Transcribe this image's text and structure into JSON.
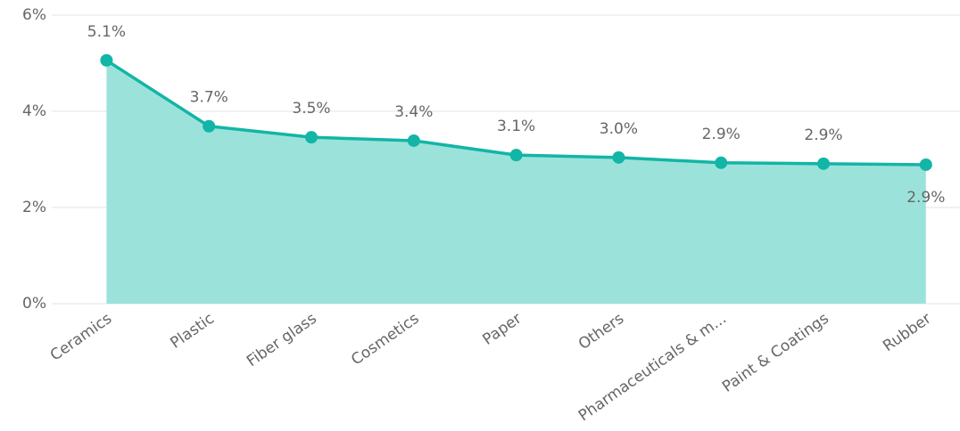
{
  "chart_data": {
    "type": "area",
    "categories": [
      "Ceramics",
      "Plastic",
      "Fiber glass",
      "Cosmetics",
      "Paper",
      "Others",
      "Pharmaceuticals & m...",
      "Paint & Coatings",
      "Rubber"
    ],
    "values": [
      5.06,
      3.69,
      3.46,
      3.39,
      3.09,
      3.04,
      2.93,
      2.91,
      2.89
    ],
    "value_labels": [
      "5.1%",
      "3.7%",
      "3.5%",
      "3.4%",
      "3.1%",
      "3.0%",
      "2.9%",
      "2.9%",
      "2.9%"
    ],
    "line_color": "#12b5a6",
    "fill_color": "#9be3da",
    "ylim": [
      0,
      6
    ],
    "yticks": [
      {
        "value": 0,
        "label": "0%"
      },
      {
        "value": 2,
        "label": "2%"
      },
      {
        "value": 4,
        "label": "4%"
      },
      {
        "value": 6,
        "label": "6%"
      }
    ],
    "grid": true
  }
}
